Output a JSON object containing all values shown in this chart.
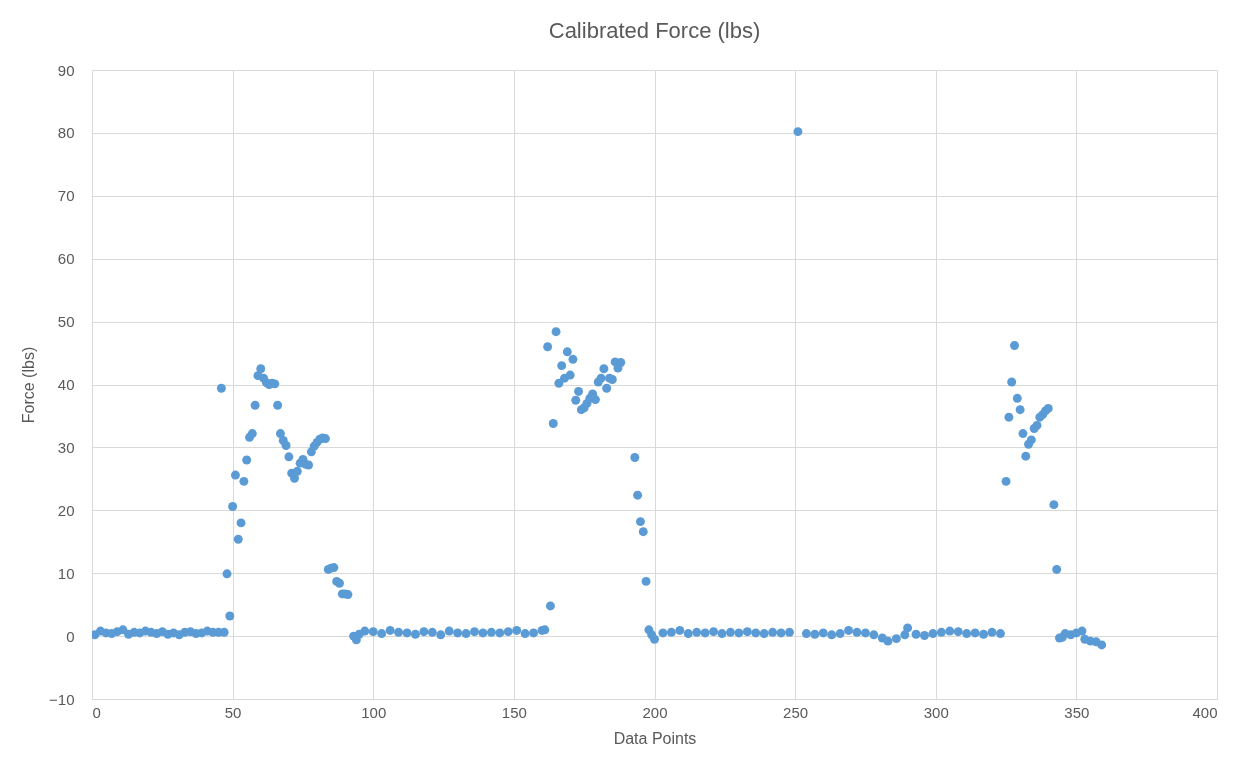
{
  "chart_data": {
    "type": "scatter",
    "title": "Calibrated Force (lbs)",
    "xlabel": "Data Points",
    "ylabel": "Force (lbs)",
    "xlim": [
      0,
      400
    ],
    "xticks": [
      0,
      50,
      100,
      150,
      200,
      250,
      300,
      350,
      400
    ],
    "ylim": [
      -10,
      90
    ],
    "yticks": [
      -10,
      0,
      10,
      20,
      30,
      40,
      50,
      60,
      70,
      80,
      90
    ],
    "grid": true,
    "marker": "circle",
    "series": [
      {
        "color": "#5b9bd5",
        "x": [
          1,
          3,
          5,
          7,
          9,
          11,
          13,
          15,
          17,
          19,
          21,
          23,
          25,
          27,
          29,
          31,
          33,
          35,
          37,
          39,
          41,
          43,
          45,
          46,
          47,
          48,
          49,
          50,
          51,
          52,
          53,
          54,
          55,
          56,
          57,
          58,
          59,
          60,
          61,
          62,
          63,
          64,
          65,
          66,
          67,
          68,
          69,
          70,
          71,
          72,
          73,
          74,
          75,
          76,
          77,
          78,
          79,
          80,
          81,
          82,
          83,
          84,
          85,
          86,
          87,
          88,
          89,
          90,
          91,
          93,
          94,
          95,
          97,
          100,
          103,
          106,
          109,
          112,
          115,
          118,
          121,
          124,
          127,
          130,
          133,
          136,
          139,
          142,
          145,
          148,
          151,
          154,
          157,
          160,
          161,
          162,
          163,
          164,
          165,
          166,
          167,
          168,
          169,
          170,
          171,
          172,
          173,
          174,
          175,
          176,
          177,
          178,
          179,
          180,
          181,
          182,
          183,
          184,
          185,
          186,
          187,
          188,
          193,
          194,
          195,
          196,
          197,
          198,
          199,
          200,
          203,
          206,
          209,
          212,
          215,
          218,
          221,
          224,
          227,
          230,
          233,
          236,
          239,
          242,
          245,
          248,
          251,
          254,
          257,
          260,
          263,
          266,
          269,
          272,
          275,
          278,
          281,
          283,
          286,
          289,
          290,
          293,
          296,
          299,
          302,
          305,
          308,
          311,
          314,
          317,
          320,
          323,
          325,
          326,
          327,
          328,
          329,
          330,
          331,
          332,
          333,
          334,
          335,
          336,
          337,
          338,
          339,
          340,
          342,
          343,
          344,
          345,
          346,
          348,
          350,
          352,
          353,
          355,
          357,
          359
        ],
        "values": [
          0.2,
          0.8,
          0.5,
          0.4,
          0.7,
          1.0,
          0.3,
          0.6,
          0.5,
          0.8,
          0.6,
          0.4,
          0.7,
          0.3,
          0.5,
          0.2,
          0.6,
          0.7,
          0.4,
          0.5,
          0.8,
          0.6,
          0.6,
          39.4,
          0.6,
          9.9,
          3.2,
          20.6,
          25.6,
          15.4,
          18.0,
          24.6,
          28.0,
          31.6,
          32.2,
          36.7,
          41.4,
          42.5,
          41.0,
          40.3,
          40.0,
          40.2,
          40.1,
          36.7,
          32.2,
          31.1,
          30.3,
          28.5,
          25.9,
          25.1,
          26.2,
          27.5,
          28.1,
          27.3,
          27.2,
          29.3,
          30.2,
          30.8,
          31.3,
          31.5,
          31.4,
          10.6,
          10.8,
          10.9,
          8.7,
          8.4,
          6.7,
          6.7,
          6.6,
          0.0,
          -0.6,
          0.3,
          0.8,
          0.7,
          0.4,
          0.9,
          0.6,
          0.5,
          0.3,
          0.7,
          0.6,
          0.2,
          0.8,
          0.5,
          0.4,
          0.7,
          0.5,
          0.6,
          0.5,
          0.7,
          0.9,
          0.4,
          0.5,
          0.9,
          1.0,
          46.0,
          4.8,
          33.8,
          48.4,
          40.2,
          43.0,
          41.0,
          45.2,
          41.5,
          44.0,
          37.5,
          38.9,
          36.0,
          36.3,
          37.0,
          37.8,
          38.5,
          37.6,
          40.4,
          41.0,
          42.5,
          39.4,
          41.0,
          40.8,
          43.6,
          42.6,
          43.5,
          28.4,
          22.4,
          18.2,
          16.6,
          8.7,
          1.0,
          0.2,
          -0.5,
          0.5,
          0.6,
          0.9,
          0.4,
          0.6,
          0.5,
          0.7,
          0.4,
          0.6,
          0.5,
          0.7,
          0.5,
          0.4,
          0.6,
          0.5,
          0.6,
          80.2,
          0.4,
          0.3,
          0.5,
          0.2,
          0.4,
          0.9,
          0.6,
          0.5,
          0.2,
          -0.3,
          -0.8,
          -0.4,
          0.2,
          1.3,
          0.3,
          0.1,
          0.4,
          0.6,
          0.8,
          0.7,
          0.4,
          0.5,
          0.3,
          0.6,
          0.4,
          24.6,
          34.8,
          40.4,
          46.2,
          37.8,
          36.0,
          32.2,
          28.6,
          30.5,
          31.2,
          33.0,
          33.5,
          34.8,
          35.2,
          35.8,
          36.2,
          20.9,
          10.6,
          -0.3,
          -0.2,
          0.4,
          0.2,
          0.5,
          0.8,
          -0.5,
          -0.8,
          -0.9,
          -1.4
        ]
      }
    ]
  }
}
